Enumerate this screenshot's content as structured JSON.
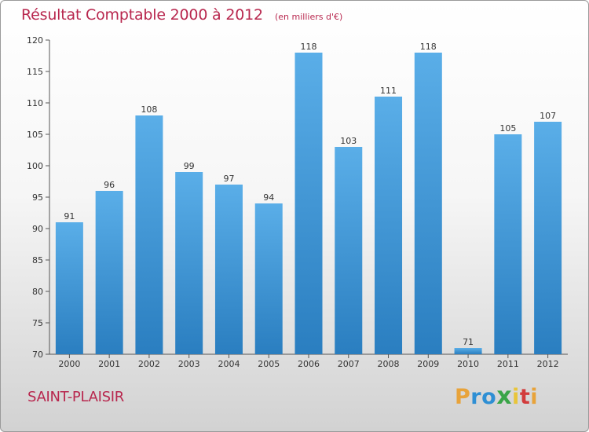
{
  "chart_data": {
    "type": "bar",
    "title": "Résultat Comptable 2000 à 2012",
    "unit": "(en milliers d'€)",
    "categories": [
      "2000",
      "2001",
      "2002",
      "2003",
      "2004",
      "2005",
      "2006",
      "2007",
      "2008",
      "2009",
      "2010",
      "2011",
      "2012"
    ],
    "values": [
      91,
      96,
      108,
      99,
      97,
      94,
      118,
      103,
      111,
      118,
      71,
      105,
      107
    ],
    "value_labels": [
      "91",
      "96",
      "108",
      "99",
      "97",
      "94",
      "118",
      "103",
      "111",
      "118",
      "71",
      "105",
      "107"
    ],
    "ylim": [
      70,
      120
    ],
    "yticks": [
      70,
      75,
      80,
      85,
      90,
      95,
      100,
      105,
      110,
      115,
      120
    ],
    "xlabel": "",
    "ylabel": "",
    "grid": false,
    "bar_color_top": "#5aaee8",
    "bar_color_bottom": "#2a7ec0"
  },
  "footer": {
    "commune": "SAINT-PLAISIR",
    "brand": "Proxiti"
  },
  "colors": {
    "title": "#b8274e",
    "axis": "#555555"
  }
}
